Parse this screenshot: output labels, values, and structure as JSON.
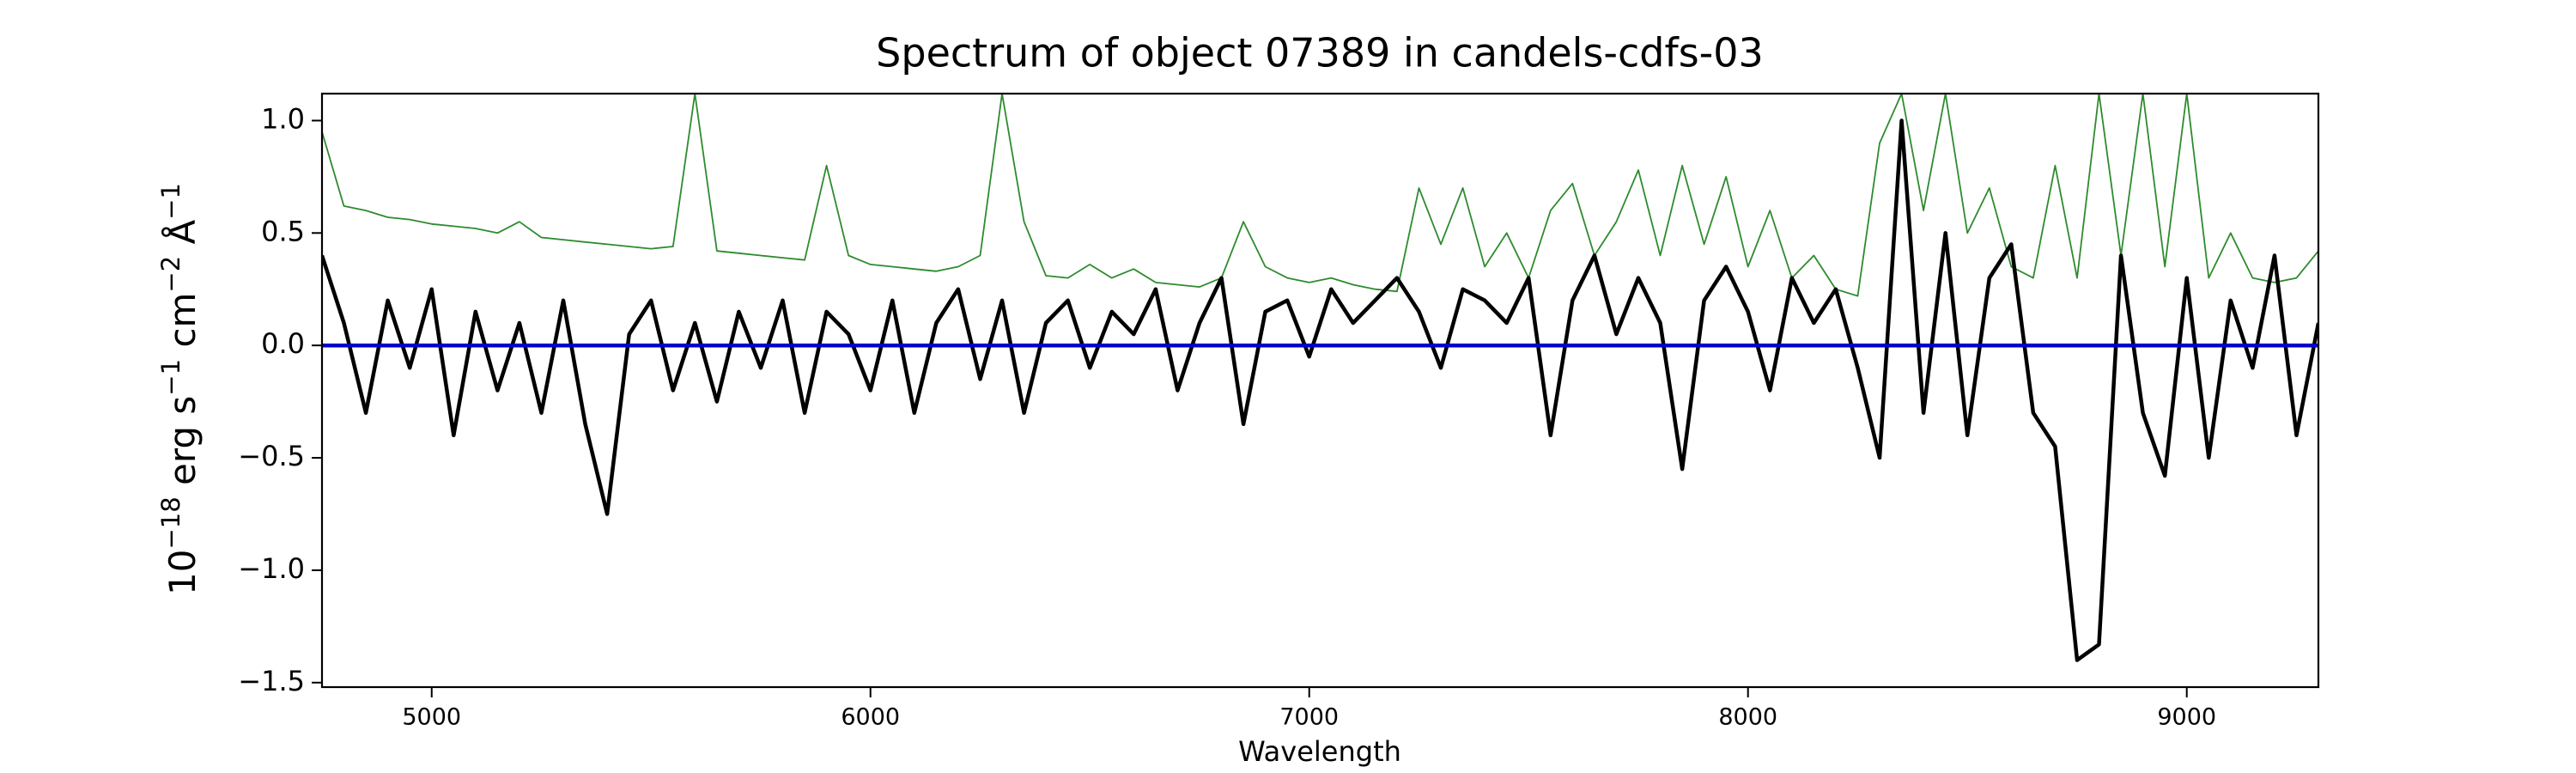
{
  "chart_data": {
    "type": "line",
    "title": "Spectrum of object 07389 in candels-cdfs-03",
    "xlabel": "Wavelength",
    "ylabel": [
      "10",
      "−18",
      " erg s",
      "−1",
      " cm",
      "−2",
      " Å",
      "−1"
    ],
    "xlim": [
      4750,
      9300
    ],
    "ylim": [
      -1.52,
      1.12
    ],
    "xticks": [
      5000,
      6000,
      7000,
      8000,
      9000
    ],
    "yticks": [
      {
        "value": -1.5,
        "label": "−1.5"
      },
      {
        "value": -1.0,
        "label": "−1.0"
      },
      {
        "value": -0.5,
        "label": "−0.5"
      },
      {
        "value": 0,
        "label": "0.0"
      },
      0.5,
      {
        "value": 1.0,
        "label": "1.0"
      }
    ],
    "x": [
      4750,
      4800,
      4850,
      4900,
      4950,
      5000,
      5050,
      5100,
      5150,
      5200,
      5250,
      5300,
      5350,
      5400,
      5450,
      5500,
      5550,
      5600,
      5650,
      5700,
      5750,
      5800,
      5850,
      5900,
      5950,
      6000,
      6050,
      6100,
      6150,
      6200,
      6250,
      6300,
      6350,
      6400,
      6450,
      6500,
      6550,
      6600,
      6650,
      6700,
      6750,
      6800,
      6850,
      6900,
      6950,
      7000,
      7050,
      7100,
      7150,
      7200,
      7250,
      7300,
      7350,
      7400,
      7450,
      7500,
      7550,
      7600,
      7650,
      7700,
      7750,
      7800,
      7850,
      7900,
      7950,
      8000,
      8050,
      8100,
      8150,
      8200,
      8250,
      8300,
      8350,
      8400,
      8450,
      8500,
      8550,
      8600,
      8650,
      8700,
      8750,
      8800,
      8850,
      8900,
      8950,
      9000,
      9050,
      9100,
      9150,
      9200,
      9250,
      9300
    ],
    "series": [
      {
        "color": "#2e8b2e",
        "width": 1.8,
        "values": [
          0.95,
          0.62,
          0.6,
          0.57,
          0.56,
          0.54,
          0.53,
          0.52,
          0.5,
          0.55,
          0.48,
          0.47,
          0.46,
          0.45,
          0.44,
          0.43,
          0.44,
          1.12,
          0.42,
          0.41,
          0.4,
          0.39,
          0.38,
          0.8,
          0.4,
          0.36,
          0.35,
          0.34,
          0.33,
          0.35,
          0.4,
          1.12,
          0.55,
          0.31,
          0.3,
          0.36,
          0.3,
          0.34,
          0.28,
          0.27,
          0.26,
          0.3,
          0.55,
          0.35,
          0.3,
          0.28,
          0.3,
          0.27,
          0.25,
          0.24,
          0.7,
          0.45,
          0.7,
          0.35,
          0.5,
          0.3,
          0.6,
          0.72,
          0.4,
          0.55,
          0.78,
          0.4,
          0.8,
          0.45,
          0.75,
          0.35,
          0.6,
          0.3,
          0.4,
          0.25,
          0.22,
          0.9,
          1.12,
          0.6,
          1.12,
          0.5,
          0.7,
          0.35,
          0.3,
          0.8,
          0.3,
          1.12,
          0.4,
          1.12,
          0.35,
          1.12,
          0.3,
          0.5,
          0.3,
          0.28,
          0.3,
          0.42
        ]
      },
      {
        "color": "#000000",
        "width": 4.5,
        "values": [
          0.4,
          0.1,
          -0.3,
          0.2,
          -0.1,
          0.25,
          -0.4,
          0.15,
          -0.2,
          0.1,
          -0.3,
          0.2,
          -0.35,
          -0.75,
          0.05,
          0.2,
          -0.2,
          0.1,
          -0.25,
          0.15,
          -0.1,
          0.2,
          -0.3,
          0.15,
          0.05,
          -0.2,
          0.2,
          -0.3,
          0.1,
          0.25,
          -0.15,
          0.2,
          -0.3,
          0.1,
          0.2,
          -0.1,
          0.15,
          0.05,
          0.25,
          -0.2,
          0.1,
          0.3,
          -0.35,
          0.15,
          0.2,
          -0.05,
          0.25,
          0.1,
          0.2,
          0.3,
          0.15,
          -0.1,
          0.25,
          0.2,
          0.1,
          0.3,
          -0.4,
          0.2,
          0.4,
          0.05,
          0.3,
          0.1,
          -0.55,
          0.2,
          0.35,
          0.15,
          -0.2,
          0.3,
          0.1,
          0.25,
          -0.1,
          -0.5,
          1.0,
          -0.3,
          0.5,
          -0.4,
          0.3,
          0.45,
          -0.3,
          -0.45,
          -1.4,
          -1.33,
          0.4,
          -0.3,
          -0.58,
          0.3,
          -0.5,
          0.2,
          -0.1,
          0.4,
          -0.4,
          0.1
        ]
      },
      {
        "color": "#0000cc",
        "width": 4.5,
        "x": [
          4750,
          9300
        ],
        "values": [
          0,
          0
        ]
      }
    ]
  }
}
